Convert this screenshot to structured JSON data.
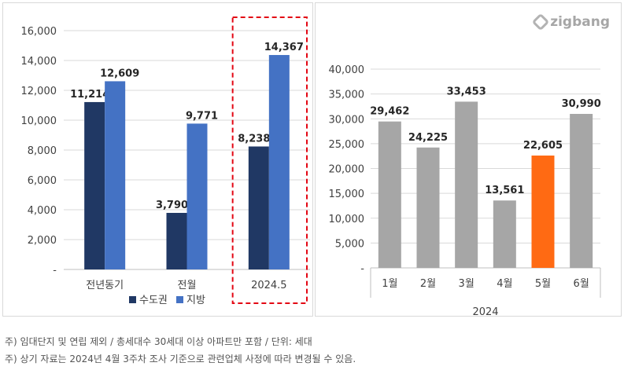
{
  "logo": {
    "text": "zigbang"
  },
  "notes": [
    "주) 임대단지 및 연립 제외 / 총세대수 30세대 이상 아파트만 포함 / 단위: 세대",
    "주) 상기 자료는 2024년 4월 3주차 조사 기준으로 관련업체 사정에 따라 변경될 수 있음."
  ],
  "colors": {
    "capital": "#203864",
    "region": "#4472C4",
    "gray_bar": "#A6A6A6",
    "highlight_bar": "#FF6A13",
    "highlight_box": "#E30613"
  },
  "chart_data": [
    {
      "type": "bar",
      "categories": [
        "전년동기",
        "전월",
        "2024.5"
      ],
      "series": [
        {
          "name": "수도권",
          "values": [
            11214,
            3790,
            8238
          ],
          "labels": [
            "11,214",
            "3,790",
            "8,238"
          ]
        },
        {
          "name": "지방",
          "values": [
            12609,
            9771,
            14367
          ],
          "labels": [
            "12,609",
            "9,771",
            "14,367"
          ]
        }
      ],
      "ylim": [
        0,
        16000
      ],
      "yticks": [
        "-",
        "2,000",
        "4,000",
        "6,000",
        "8,000",
        "10,000",
        "12,000",
        "14,000",
        "16,000"
      ],
      "grid": true,
      "legend": "bottom",
      "highlight_category": "2024.5"
    },
    {
      "type": "bar",
      "categories": [
        "1월",
        "2월",
        "3월",
        "4월",
        "5월",
        "6월"
      ],
      "values": [
        29462,
        24225,
        33453,
        13561,
        22605,
        30990
      ],
      "labels": [
        "29,462",
        "24,225",
        "33,453",
        "13,561",
        "22,605",
        "30,990"
      ],
      "xlabel": "2024",
      "ylim": [
        0,
        40000
      ],
      "yticks": [
        "-",
        "5,000",
        "10,000",
        "15,000",
        "20,000",
        "25,000",
        "30,000",
        "35,000",
        "40,000"
      ],
      "grid": true,
      "highlight_category": "5월"
    }
  ]
}
